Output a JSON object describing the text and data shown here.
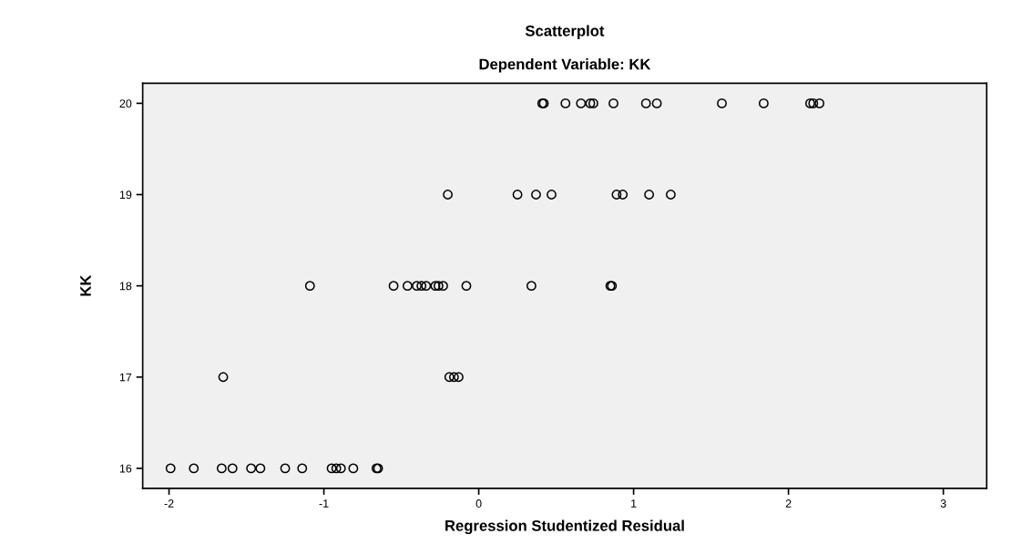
{
  "chart_data": {
    "type": "scatter",
    "title": "Scatterplot",
    "subtitle": "Dependent Variable: KK",
    "xlabel": "Regression Studentized Residual",
    "ylabel": "KK",
    "xlim": [
      -2.17,
      3.28
    ],
    "xticks": [
      {
        "value": -2,
        "label": "-2"
      },
      {
        "value": -1,
        "label": "-1"
      },
      0,
      1,
      2,
      3
    ],
    "ylim": [
      15.78,
      20.22
    ],
    "yticks": [
      16,
      17,
      18,
      19,
      20
    ],
    "grid": false,
    "marker": "circle",
    "series": [
      {
        "color": "#000000",
        "x": [
          0.41,
          0.42,
          0.56,
          0.66,
          0.72,
          0.74,
          0.87,
          1.08,
          1.15,
          1.57,
          1.84,
          2.14,
          2.16,
          2.2,
          -0.2,
          0.25,
          0.37,
          0.47,
          0.89,
          0.93,
          1.1,
          1.24,
          -1.09,
          -0.55,
          -0.46,
          -0.4,
          -0.37,
          -0.34,
          -0.28,
          -0.26,
          -0.23,
          -0.08,
          0.34,
          0.85,
          0.86,
          -1.65,
          -0.19,
          -0.16,
          -0.13,
          -1.99,
          -1.84,
          -1.66,
          -1.59,
          -1.47,
          -1.41,
          -1.25,
          -1.14,
          -0.95,
          -0.92,
          -0.89,
          -0.81,
          -0.66,
          -0.65
        ],
        "values": [
          20,
          20,
          20,
          20,
          20,
          20,
          20,
          20,
          20,
          20,
          20,
          20,
          20,
          20,
          19,
          19,
          19,
          19,
          19,
          19,
          19,
          19,
          18,
          18,
          18,
          18,
          18,
          18,
          18,
          18,
          18,
          18,
          18,
          18,
          18,
          17,
          17,
          17,
          17,
          16,
          16,
          16,
          16,
          16,
          16,
          16,
          16,
          16,
          16,
          16,
          16,
          16,
          16
        ]
      }
    ]
  }
}
